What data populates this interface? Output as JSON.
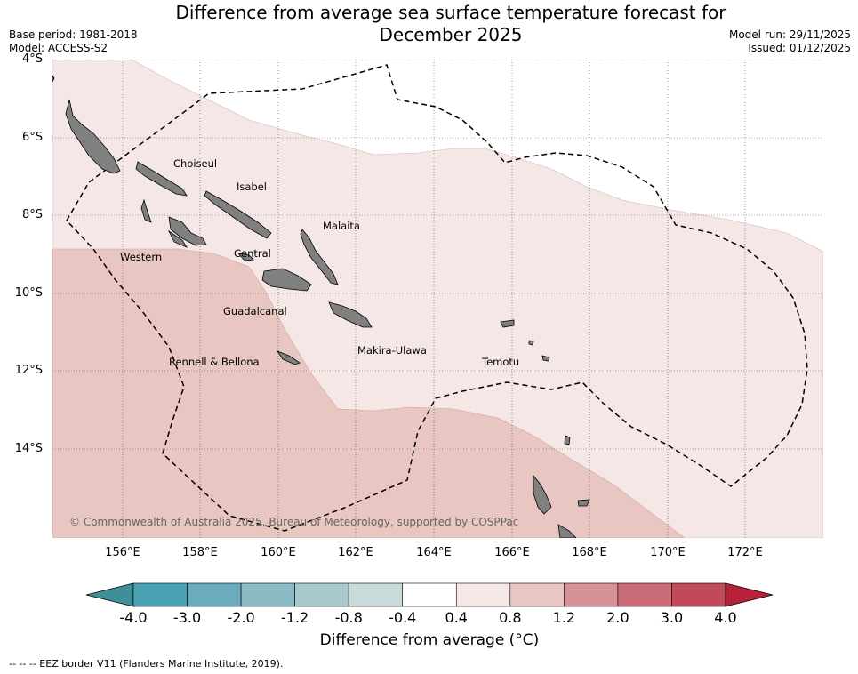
{
  "title": {
    "line1": "Difference from average sea surface temperature forecast for",
    "line2": "December 2025"
  },
  "meta": {
    "base_period": "Base period: 1981-2018",
    "model": "Model: ACCESS-S2",
    "model_run": "Model run: 29/11/2025",
    "issued": "Issued: 01/12/2025"
  },
  "axes": {
    "lat_ticks": [
      "4°S",
      "6°S",
      "8°S",
      "10°S",
      "12°S",
      "14°S"
    ],
    "lon_ticks": [
      "156°E",
      "158°E",
      "160°E",
      "162°E",
      "164°E",
      "166°E",
      "168°E",
      "170°E",
      "172°E"
    ]
  },
  "places": [
    {
      "name": "Choiseul"
    },
    {
      "name": "Isabel"
    },
    {
      "name": "Malaita"
    },
    {
      "name": "Western"
    },
    {
      "name": "Central"
    },
    {
      "name": "Guadalcanal"
    },
    {
      "name": "Makira-Ulawa"
    },
    {
      "name": "Temotu"
    },
    {
      "name": "Rennell & Bellona"
    }
  ],
  "copyright": "© Commonwealth of Australia 2025, Bureau of Meteorology, supported by COSPPac",
  "colorbar": {
    "ticks": [
      "-4.0",
      "-3.0",
      "-2.0",
      "-1.2",
      "-0.8",
      "-0.4",
      "0.4",
      "0.8",
      "1.2",
      "2.0",
      "3.0",
      "4.0"
    ],
    "colors": [
      "#4aa1b3",
      "#6aacbd",
      "#8bbbc5",
      "#a8c8cd",
      "#c9dadb",
      "#ffffff",
      "#f5e7e6",
      "#e8c6c1",
      "#d79298",
      "#cb6b77",
      "#c04a5a"
    ],
    "under_color": "#3f8f99",
    "over_color": "#b8213a",
    "label": "Difference from average ($^\\circ$C)",
    "label_display": "Difference from average (°C)"
  },
  "footnote": "--  --  -- EEZ border V11 (Flanders Marine Institute, 2019).",
  "legend_colors": {
    "land": "#808080",
    "light_warm": "#f5e7e6",
    "medium_warm": "#e8c6c1"
  }
}
